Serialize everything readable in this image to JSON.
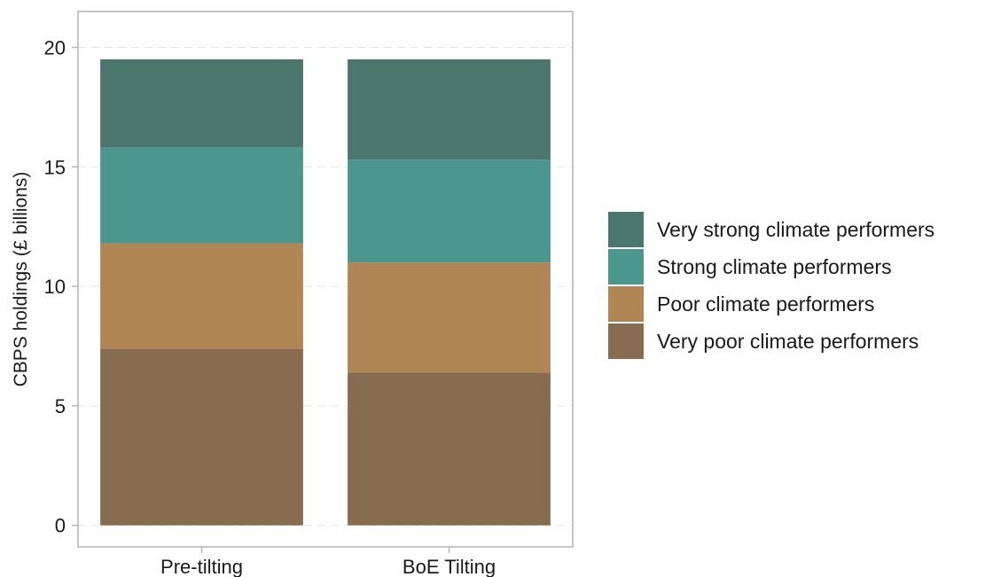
{
  "chart_data": {
    "type": "bar",
    "stacked": true,
    "categories": [
      "Pre-tilting",
      "BoE Tilting"
    ],
    "series": [
      {
        "name": "Very poor climate performers",
        "values": [
          7.4,
          6.4
        ],
        "color": "#876c4f"
      },
      {
        "name": "Poor climate performers",
        "values": [
          4.4,
          4.6
        ],
        "color": "#b08655"
      },
      {
        "name": "Strong climate performers",
        "values": [
          4.0,
          4.3
        ],
        "color": "#4b968d"
      },
      {
        "name": "Very strong climate performers",
        "values": [
          3.7,
          4.2
        ],
        "color": "#4b766d"
      }
    ],
    "legend_order": [
      "Very strong climate performers",
      "Strong climate performers",
      "Poor climate performers",
      "Very poor climate performers"
    ],
    "title": "",
    "xlabel": "",
    "ylabel": "CBPS holdings (£ billions)",
    "ylim": [
      -0.9,
      21.5
    ],
    "yticks": [
      0,
      5,
      10,
      15,
      20
    ],
    "grid": true,
    "legend_position": "right"
  }
}
